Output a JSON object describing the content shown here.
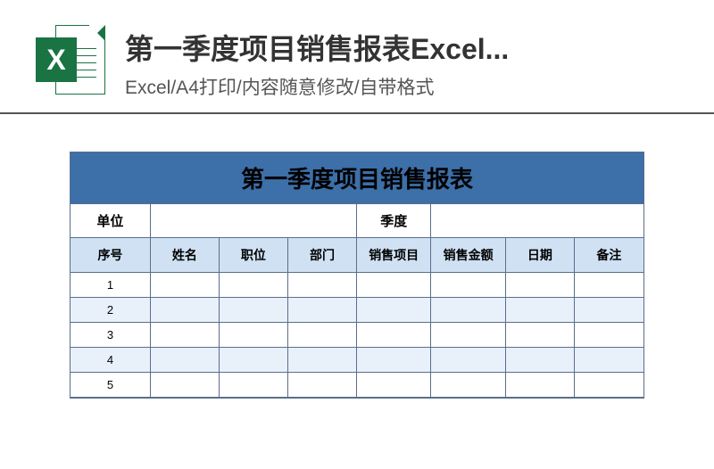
{
  "header": {
    "icon_letter": "X",
    "title": "第一季度项目销售报表Excel...",
    "subtitle": "Excel/A4打印/内容随意修改/自带格式"
  },
  "sheet": {
    "title": "第一季度项目销售报表",
    "title_bg": "#3d6fa8",
    "border_color": "#5a6e8c",
    "header_bg": "#cfe1f3",
    "row_alt_bg": "#e8f0fa",
    "info_labels": {
      "unit": "单位",
      "quarter": "季度"
    },
    "columns": [
      "序号",
      "姓名",
      "职位",
      "部门",
      "销售项目",
      "销售金额",
      "日期",
      "备注"
    ],
    "rows": [
      [
        "1",
        "",
        "",
        "",
        "",
        "",
        "",
        ""
      ],
      [
        "2",
        "",
        "",
        "",
        "",
        "",
        "",
        ""
      ],
      [
        "3",
        "",
        "",
        "",
        "",
        "",
        "",
        ""
      ],
      [
        "4",
        "",
        "",
        "",
        "",
        "",
        "",
        ""
      ],
      [
        "5",
        "",
        "",
        "",
        "",
        "",
        "",
        ""
      ]
    ]
  }
}
